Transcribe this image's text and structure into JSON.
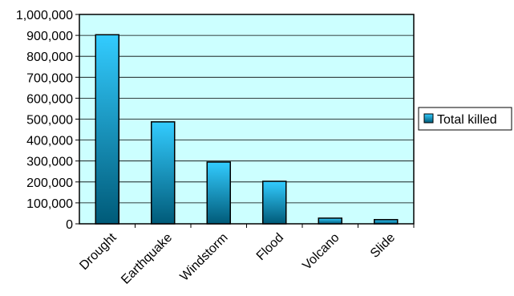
{
  "chart_data": {
    "type": "bar",
    "categories": [
      "Drought",
      "Earthquake",
      "Windstorm",
      "Flood",
      "Volcano",
      "Slide"
    ],
    "series": [
      {
        "name": "Total killed",
        "values": [
          903000,
          487000,
          295000,
          203000,
          27000,
          20000
        ]
      }
    ],
    "ylim": [
      0,
      1000000
    ],
    "yticks": [
      0,
      100000,
      200000,
      300000,
      400000,
      500000,
      600000,
      700000,
      800000,
      900000,
      1000000
    ],
    "ytick_labels": [
      "0",
      "100,000",
      "200,000",
      "300,000",
      "400,000",
      "500,000",
      "600,000",
      "700,000",
      "800,000",
      "900,000",
      "1,000,000"
    ],
    "title": "",
    "xlabel": "",
    "ylabel": "",
    "grid": true,
    "legend_position": "right",
    "colors": {
      "plot_background": "#ccffff",
      "bar_top": "#33ccff",
      "bar_bottom": "#005a78",
      "gridline": "#000000"
    }
  }
}
